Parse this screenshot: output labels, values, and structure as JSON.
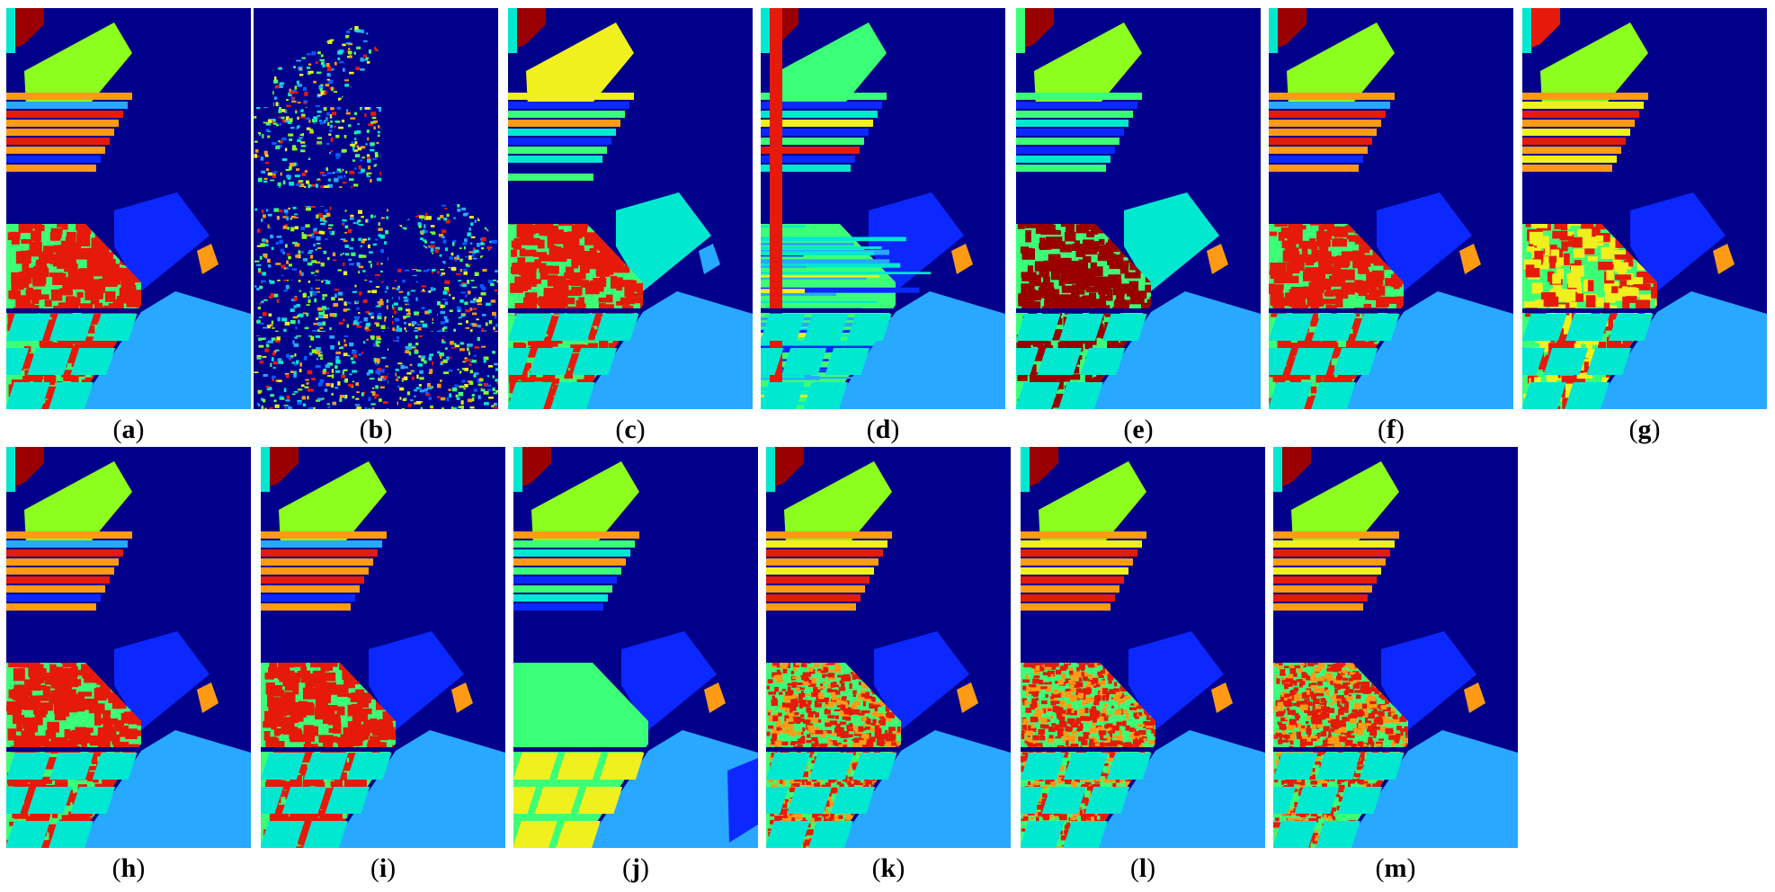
{
  "figure": {
    "panels": [
      {
        "id": "a",
        "label_open": "(",
        "letter": "a",
        "label_close": ")",
        "variant": "ref"
      },
      {
        "id": "b",
        "label_open": "(",
        "letter": "b",
        "label_close": ")",
        "variant": "noise"
      },
      {
        "id": "c",
        "label_open": "(",
        "letter": "c",
        "label_close": ")",
        "variant": "c"
      },
      {
        "id": "d",
        "label_open": "(",
        "letter": "d",
        "label_close": ")",
        "variant": "d"
      },
      {
        "id": "e",
        "label_open": "(",
        "letter": "e",
        "label_close": ")",
        "variant": "e"
      },
      {
        "id": "f",
        "label_open": "(",
        "letter": "f",
        "label_close": ")",
        "variant": "ref"
      },
      {
        "id": "g",
        "label_open": "(",
        "letter": "g",
        "label_close": ")",
        "variant": "g"
      },
      {
        "id": "h",
        "label_open": "(",
        "letter": "h",
        "label_close": ")",
        "variant": "ref"
      },
      {
        "id": "i",
        "label_open": "(",
        "letter": "i",
        "label_close": ")",
        "variant": "ref"
      },
      {
        "id": "j",
        "label_open": "(",
        "letter": "j",
        "label_close": ")",
        "variant": "j"
      },
      {
        "id": "k",
        "label_open": "(",
        "letter": "k",
        "label_close": ")",
        "variant": "speckle"
      },
      {
        "id": "l",
        "label_open": "(",
        "letter": "l",
        "label_close": ")",
        "variant": "speckle"
      },
      {
        "id": "m",
        "label_open": "(",
        "letter": "m",
        "label_close": ")",
        "variant": "speckle"
      }
    ],
    "colors": {
      "background": "#00008b",
      "bright_green": "#8cff1e",
      "orange": "#ff9a14",
      "red": "#e61a0a",
      "yellow": "#f0f01e",
      "light_green": "#3cff78",
      "cyan": "#00e8d0",
      "sky": "#28a8ff",
      "blue": "#0a28ff",
      "dark_red": "#9a0000",
      "mid_blue": "#0a5aff"
    }
  }
}
